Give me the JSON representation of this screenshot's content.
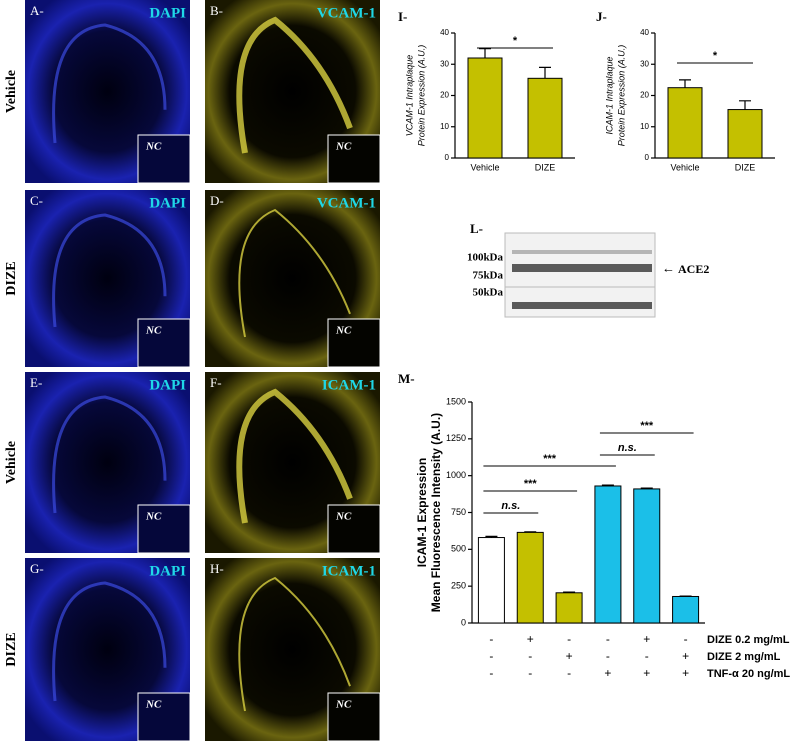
{
  "row_labels": [
    "Vehicle",
    "DIZE",
    "Vehicle",
    "DIZE"
  ],
  "panels": [
    {
      "label": "A-",
      "stain": "DAPI",
      "nc": "NC"
    },
    {
      "label": "B-",
      "stain": "VCAM-1",
      "nc": "NC"
    },
    {
      "label": "C-",
      "stain": "DAPI",
      "nc": "NC"
    },
    {
      "label": "D-",
      "stain": "VCAM-1",
      "nc": "NC"
    },
    {
      "label": "E-",
      "stain": "DAPI",
      "nc": "NC"
    },
    {
      "label": "F-",
      "stain": "ICAM-1",
      "nc": "NC"
    },
    {
      "label": "G-",
      "stain": "DAPI",
      "nc": "NC"
    },
    {
      "label": "H-",
      "stain": "ICAM-1",
      "nc": "NC"
    }
  ],
  "blot": {
    "label": "L-",
    "markers": [
      "100kDa",
      "75kDa",
      "50kDa"
    ],
    "arrow_label": "ACE2"
  },
  "chart_data": [
    {
      "type": "bar",
      "panel_label": "I-",
      "ylabel": [
        "VCAM-1 Intraplaque",
        "Protein Expression (A.U.)"
      ],
      "categories": [
        "Vehicle",
        "DIZE"
      ],
      "values": [
        32,
        25.5
      ],
      "errors": [
        3,
        3.5
      ],
      "colors": [
        "#c4c000",
        "#c4c000"
      ],
      "ylim": [
        0,
        40
      ],
      "yticks": [
        0,
        10,
        20,
        30,
        40
      ],
      "significance": [
        "*"
      ]
    },
    {
      "type": "bar",
      "panel_label": "J-",
      "ylabel": [
        "ICAM-1 Intraplaque",
        "Protein Expression (A.U.)"
      ],
      "categories": [
        "Vehicle",
        "DIZE"
      ],
      "values": [
        22.5,
        15.5
      ],
      "errors": [
        2.5,
        2.8
      ],
      "colors": [
        "#c4c000",
        "#c4c000"
      ],
      "ylim": [
        0,
        40
      ],
      "yticks": [
        0,
        10,
        20,
        30,
        40
      ],
      "significance": [
        "*"
      ]
    },
    {
      "type": "bar",
      "panel_label": "M-",
      "ylabel": [
        "ICAM-1 Expression",
        "Mean Fluorescence Intensity  (A.U.)"
      ],
      "categories": [
        null,
        null,
        null,
        null,
        null,
        null
      ],
      "values": [
        580,
        615,
        205,
        930,
        910,
        180
      ],
      "errors": [
        8,
        4,
        5,
        6,
        6,
        3
      ],
      "colors": [
        "#ffffff",
        "#c4c000",
        "#c4c000",
        "#1bbfe8",
        "#1bbfe8",
        "#1bbfe8"
      ],
      "ylim": [
        0,
        1500
      ],
      "yticks": [
        0,
        250,
        500,
        750,
        1000,
        1250,
        1500
      ],
      "significance": [
        "n.s.",
        "***",
        "***",
        "n.s.",
        "***"
      ],
      "conditions": [
        {
          "label": "DIZE  0.2 mg/mL",
          "marks": [
            "-",
            "+",
            "-",
            "-",
            "+",
            "-"
          ]
        },
        {
          "label": "DIZE  2 mg/mL",
          "marks": [
            "-",
            "-",
            "+",
            "-",
            "-",
            "+"
          ]
        },
        {
          "label": "TNF-α  20 ng/mL",
          "marks": [
            "-",
            "-",
            "-",
            "+",
            "+",
            "+"
          ]
        }
      ]
    }
  ]
}
